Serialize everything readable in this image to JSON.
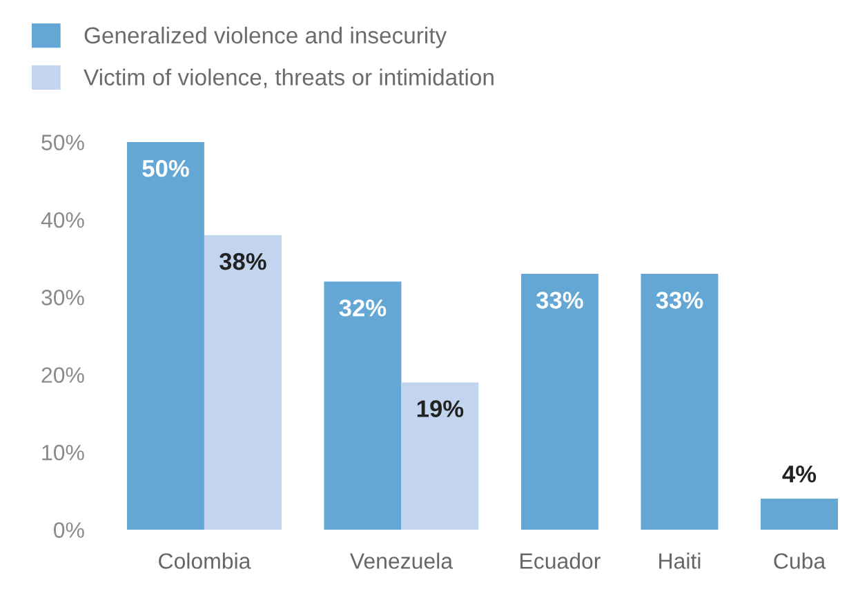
{
  "chart_data": {
    "type": "bar",
    "categories": [
      "Colombia",
      "Venezuela",
      "Ecuador",
      "Haiti",
      "Cuba"
    ],
    "series": [
      {
        "name": "Generalized violence and insecurity",
        "color": "#64a7d5",
        "values": [
          50,
          32,
          33,
          33,
          4
        ],
        "value_labels": [
          "50%",
          "32%",
          "33%",
          "33%",
          "4%"
        ]
      },
      {
        "name": "Victim of violence, threats or intimidation",
        "color": "#c3d5ee",
        "values": [
          38,
          19,
          null,
          null,
          null
        ],
        "value_labels": [
          "38%",
          "19%",
          null,
          null,
          null
        ]
      }
    ],
    "ylim": [
      0,
      50
    ],
    "yticks": [
      {
        "value": 0,
        "label": "0%"
      },
      {
        "value": 10,
        "label": "10%"
      },
      {
        "value": 20,
        "label": "20%"
      },
      {
        "value": 30,
        "label": "30%"
      },
      {
        "value": 40,
        "label": "40%"
      },
      {
        "value": 50,
        "label": "50%"
      }
    ],
    "grid": false,
    "legend": "top left"
  }
}
